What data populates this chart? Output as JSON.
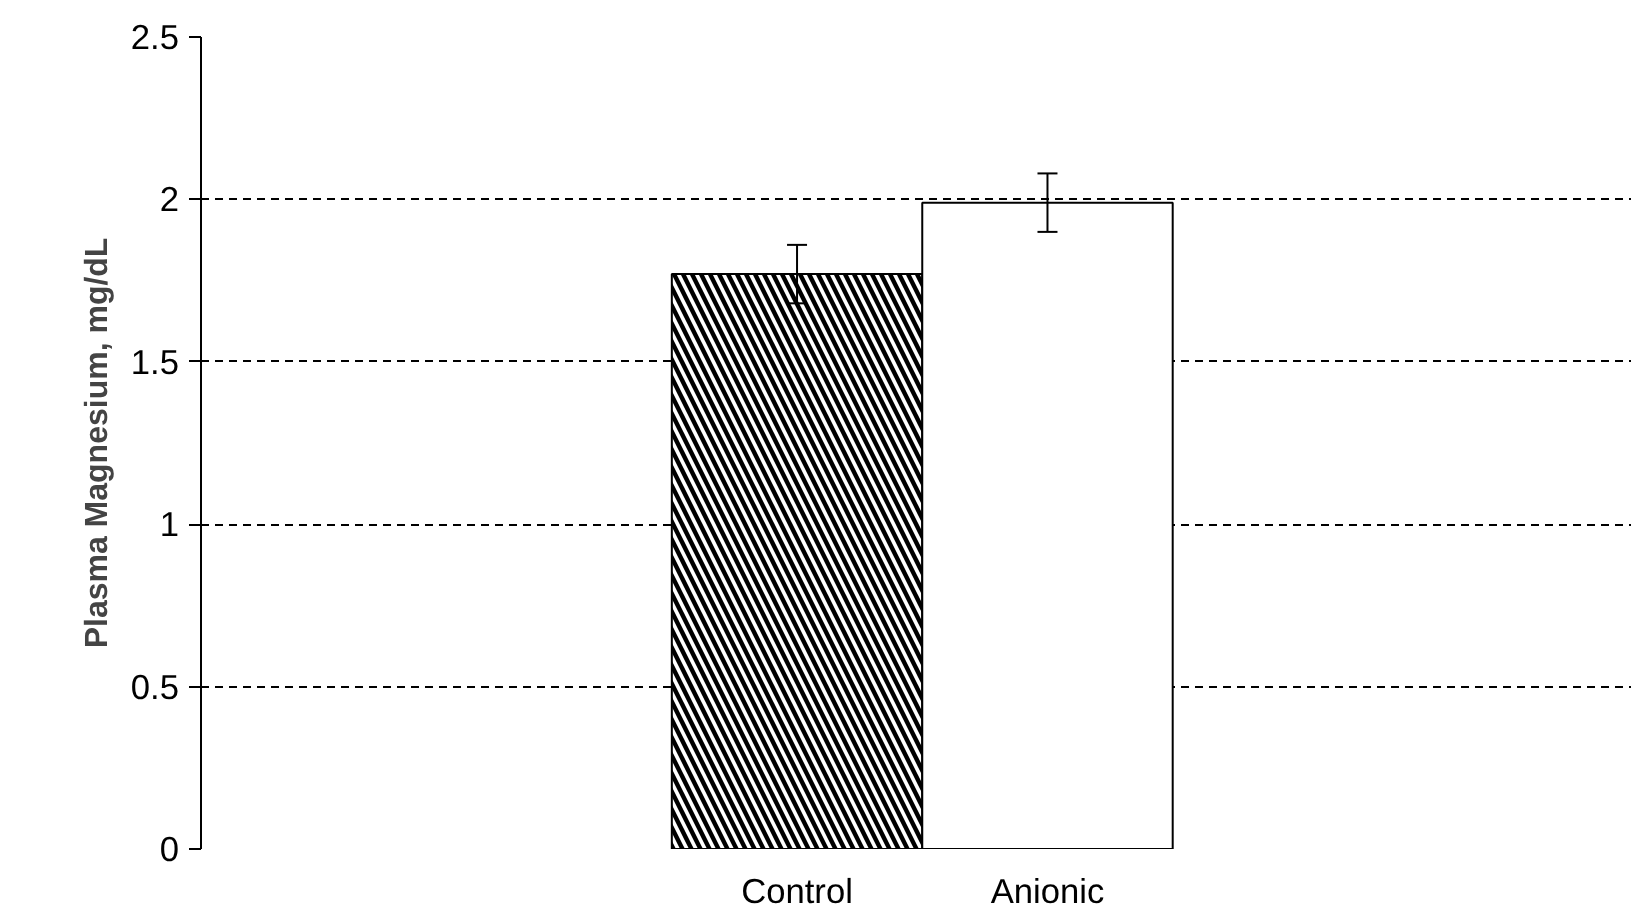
{
  "chart_data": {
    "type": "bar",
    "ylabel": "Plasma Magnesium, mg/dL",
    "categories": [
      "Control",
      "Anionic"
    ],
    "values": [
      1.77,
      1.99
    ],
    "errors": [
      0.09,
      0.09
    ],
    "colors": [
      "#000000",
      "#ffffff"
    ],
    "ylim": [
      0,
      2.5
    ],
    "yticks": [
      0,
      0.5,
      1,
      1.5,
      2,
      2.5
    ],
    "grid": "y"
  }
}
